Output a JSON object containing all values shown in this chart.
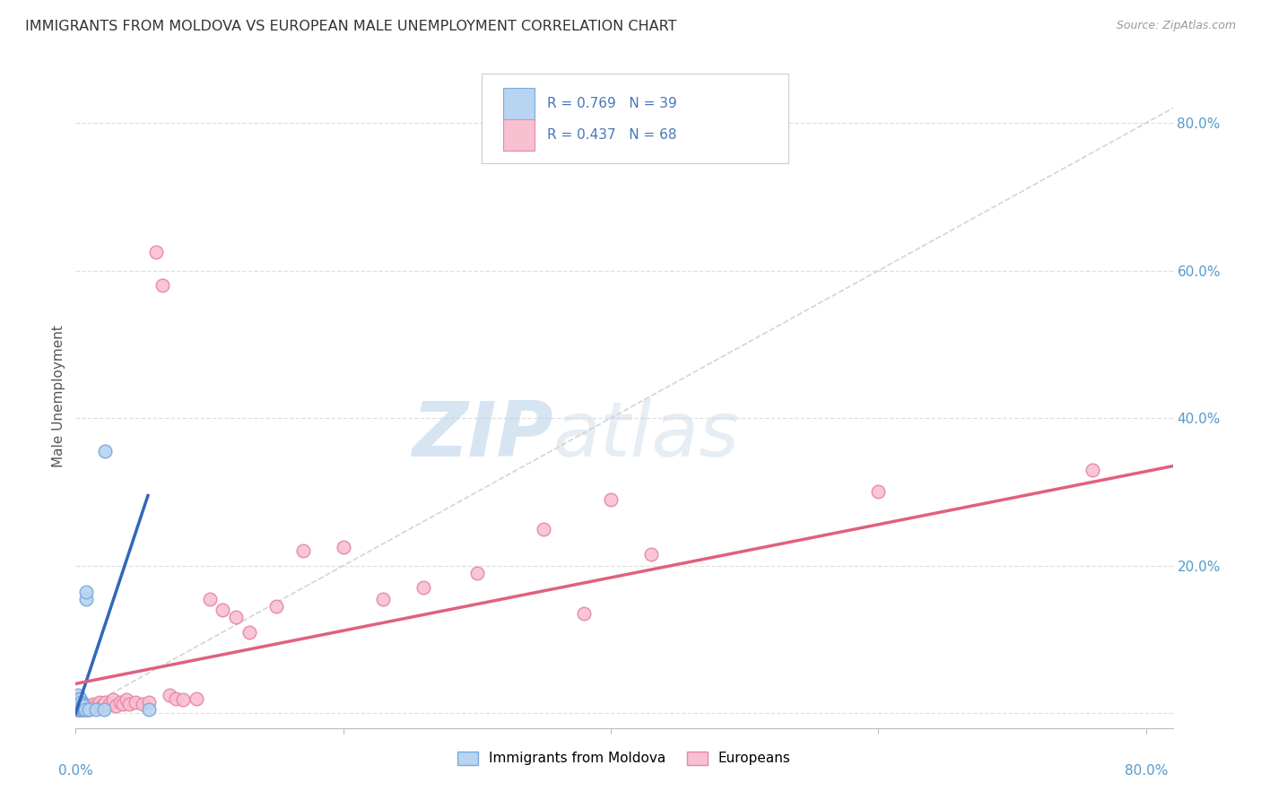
{
  "title": "IMMIGRANTS FROM MOLDOVA VS EUROPEAN MALE UNEMPLOYMENT CORRELATION CHART",
  "source": "Source: ZipAtlas.com",
  "ylabel": "Male Unemployment",
  "xlim": [
    0.0,
    0.82
  ],
  "ylim": [
    -0.02,
    0.88
  ],
  "background_color": "#ffffff",
  "grid_color": "#d8d8d8",
  "watermark_zip": "ZIP",
  "watermark_atlas": "atlas",
  "legend_r1": "R = 0.769",
  "legend_n1": "N = 39",
  "legend_r2": "R = 0.437",
  "legend_n2": "N = 68",
  "moldova_color": "#b8d4f0",
  "moldova_edge": "#7aaadd",
  "european_color": "#f8c0d0",
  "european_edge": "#e888a8",
  "moldova_trend_color": "#3366bb",
  "european_trend_color": "#e06080",
  "diagonal_color": "#cccccc",
  "moldova_trend_x": [
    0.0,
    0.054
  ],
  "moldova_trend_y": [
    0.0,
    0.295
  ],
  "european_trend_x": [
    0.0,
    0.82
  ],
  "european_trend_y": [
    0.04,
    0.335
  ],
  "moldova_points_x": [
    0.001,
    0.001,
    0.001,
    0.001,
    0.002,
    0.002,
    0.002,
    0.002,
    0.002,
    0.002,
    0.002,
    0.002,
    0.003,
    0.003,
    0.003,
    0.003,
    0.003,
    0.003,
    0.003,
    0.004,
    0.004,
    0.004,
    0.004,
    0.004,
    0.005,
    0.005,
    0.005,
    0.005,
    0.006,
    0.006,
    0.006,
    0.007,
    0.008,
    0.008,
    0.01,
    0.015,
    0.021,
    0.022,
    0.055
  ],
  "moldova_points_y": [
    0.005,
    0.008,
    0.01,
    0.012,
    0.005,
    0.008,
    0.01,
    0.012,
    0.015,
    0.018,
    0.02,
    0.025,
    0.005,
    0.008,
    0.01,
    0.012,
    0.015,
    0.018,
    0.02,
    0.005,
    0.008,
    0.01,
    0.012,
    0.015,
    0.005,
    0.008,
    0.01,
    0.012,
    0.005,
    0.008,
    0.01,
    0.005,
    0.155,
    0.165,
    0.005,
    0.005,
    0.005,
    0.355,
    0.005
  ],
  "european_points_x": [
    0.001,
    0.001,
    0.001,
    0.002,
    0.002,
    0.002,
    0.002,
    0.003,
    0.003,
    0.003,
    0.003,
    0.003,
    0.004,
    0.004,
    0.004,
    0.004,
    0.005,
    0.005,
    0.005,
    0.005,
    0.006,
    0.006,
    0.006,
    0.007,
    0.007,
    0.008,
    0.008,
    0.009,
    0.01,
    0.01,
    0.012,
    0.013,
    0.015,
    0.018,
    0.02,
    0.022,
    0.025,
    0.028,
    0.03,
    0.033,
    0.035,
    0.038,
    0.04,
    0.045,
    0.05,
    0.055,
    0.06,
    0.065,
    0.07,
    0.075,
    0.08,
    0.09,
    0.1,
    0.11,
    0.12,
    0.13,
    0.15,
    0.17,
    0.2,
    0.23,
    0.26,
    0.3,
    0.35,
    0.38,
    0.4,
    0.43,
    0.6,
    0.76
  ],
  "european_points_y": [
    0.005,
    0.01,
    0.015,
    0.005,
    0.008,
    0.01,
    0.015,
    0.005,
    0.008,
    0.01,
    0.012,
    0.02,
    0.005,
    0.008,
    0.01,
    0.015,
    0.005,
    0.008,
    0.01,
    0.015,
    0.005,
    0.008,
    0.012,
    0.005,
    0.01,
    0.005,
    0.01,
    0.005,
    0.005,
    0.01,
    0.008,
    0.012,
    0.01,
    0.015,
    0.01,
    0.015,
    0.012,
    0.018,
    0.01,
    0.015,
    0.013,
    0.018,
    0.012,
    0.015,
    0.013,
    0.015,
    0.625,
    0.58,
    0.025,
    0.02,
    0.018,
    0.02,
    0.155,
    0.14,
    0.13,
    0.11,
    0.145,
    0.22,
    0.225,
    0.155,
    0.17,
    0.19,
    0.25,
    0.135,
    0.29,
    0.215,
    0.3,
    0.33
  ]
}
